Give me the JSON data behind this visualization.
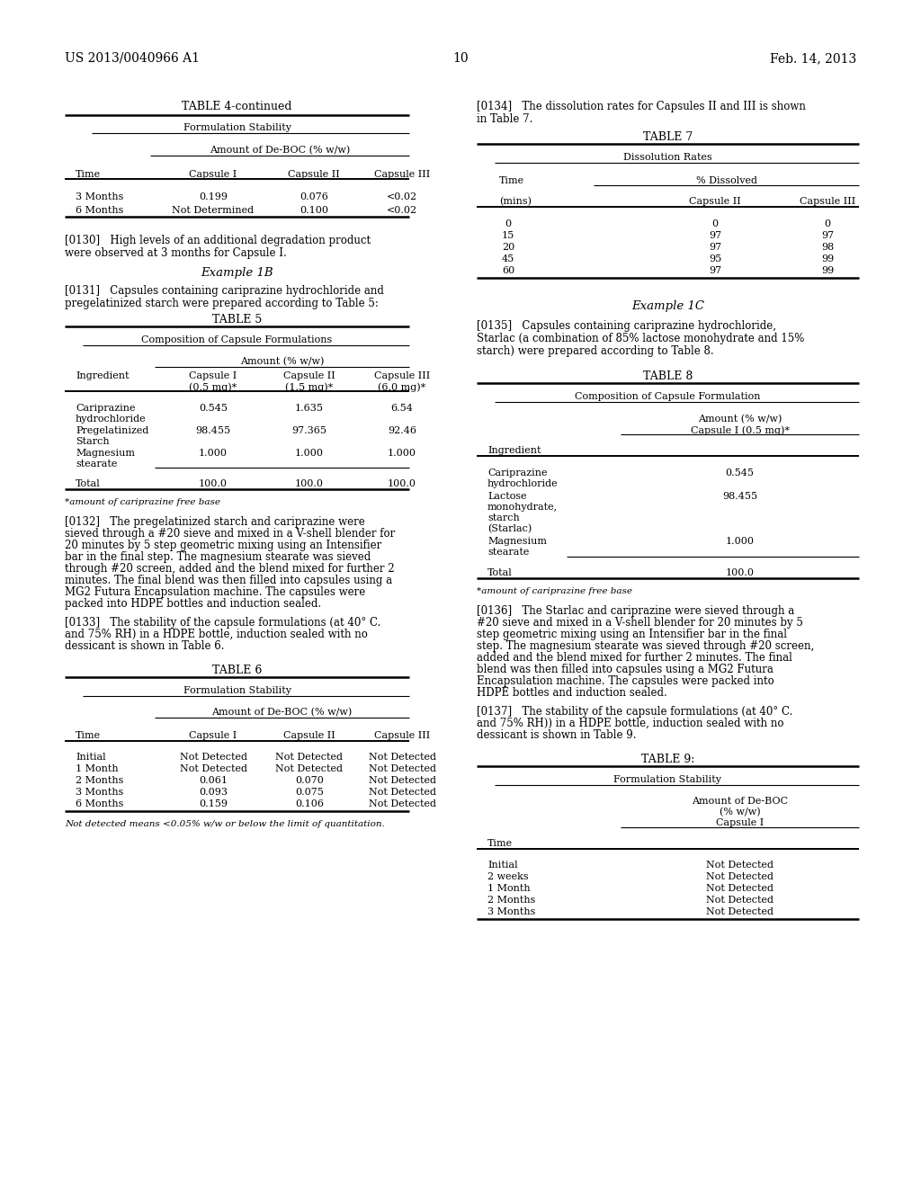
{
  "page_header_left": "US 2013/0040966 A1",
  "page_header_right": "Feb. 14, 2013",
  "page_number": "10",
  "background_color": "#ffffff"
}
